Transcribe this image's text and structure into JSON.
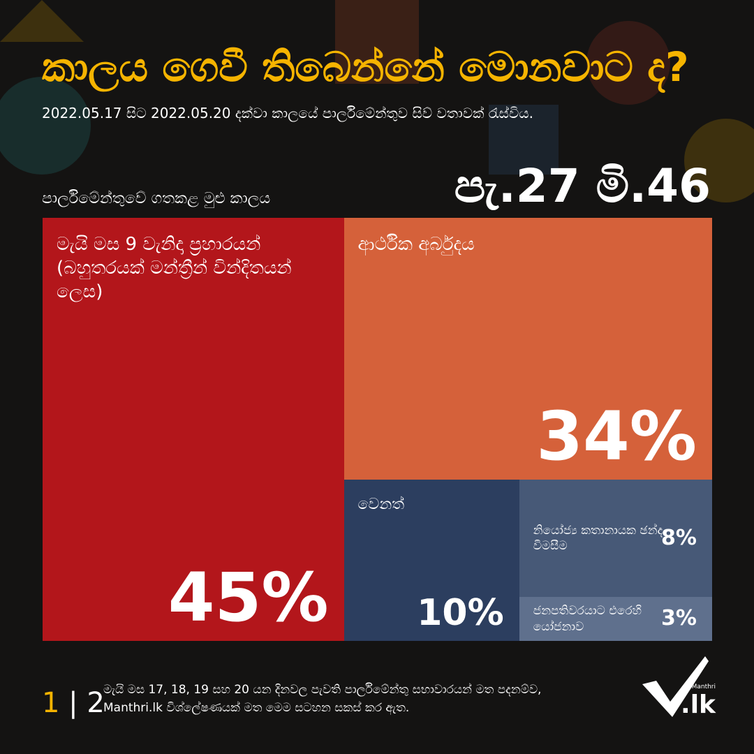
{
  "chart_data": {
    "type": "treemap",
    "title": "කාලය ගෙවී තිබෙන්නේ මොනවාට ද?",
    "subtitle": "2022.05.17 සිට 2022.05.20 දක්වා කාලයේ පාර්ලිමේන්තුව සිව් වතාවක් රැස්විය.",
    "total_label": "පාර්ලිමේන්තුවේ ගතකළ මුළු කාලය",
    "total_value": "පැ.27 මි.46",
    "categories": [
      "මැයි මස 9 වැනිදා ප්‍රහාරයන් (බහුතරයක් මන්ත්‍රීන් වින්දිතයන් ලෙස)",
      "ආර්ථික අර්බුදය",
      "වෙනත්",
      "නියෝජ්‍ය කතානායක ඡන්ද විමසීම",
      "ජනපතිවරයාට එරෙහි යෝජනාව"
    ],
    "values": [
      45,
      34,
      10,
      8,
      3
    ],
    "value_labels": [
      "45%",
      "34%",
      "10%",
      "8%",
      "3%"
    ],
    "colors": [
      "#b3161b",
      "#d5613a",
      "#2c3e5f",
      "#475977",
      "#5f708d"
    ]
  },
  "footer": {
    "page_current": "1",
    "page_total": "2",
    "note_lines": [
      "මැයි මස 17, 18, 19 සහ 20 යන දිනවල පැවති පාර්ලිමේන්තු සභාවාරයන් මත පදනම්ව,",
      "Manthri.lk විශ්ලේෂණයක් මත මෙම සටහන සකස් කර ඇත."
    ],
    "logo_small": "Manthri",
    "logo_main": ".lk"
  }
}
